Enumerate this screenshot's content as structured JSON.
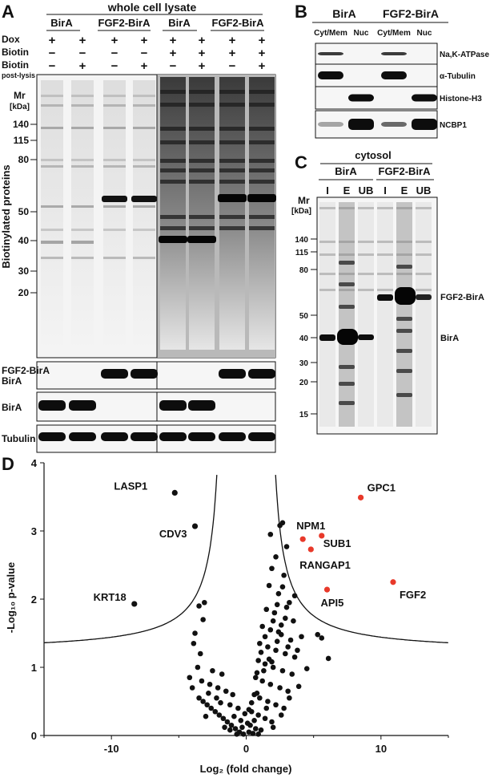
{
  "panelA": {
    "letter": "A",
    "title": "whole cell lysate",
    "groups": [
      "BirA",
      "FGF2-BirA",
      "BirA",
      "FGF2-BirA"
    ],
    "rowLabels": {
      "dox": "Dox",
      "biotin": "Biotin",
      "biotin2": "Biotin",
      "postlysis": "post-lysis"
    },
    "dox": [
      "+",
      "+",
      "+",
      "+",
      "+",
      "+",
      "+",
      "+"
    ],
    "biotin": [
      "−",
      "−",
      "−",
      "−",
      "+",
      "+",
      "+",
      "+"
    ],
    "biotin2": [
      "−",
      "+",
      "−",
      "+",
      "−",
      "+",
      "−",
      "+"
    ],
    "mr": "Mr",
    "kda": "[kDa]",
    "ladder": [
      "140",
      "115",
      "80",
      "50",
      "40",
      "30",
      "20"
    ],
    "yaxis": "Biotinylated proteins",
    "blots": [
      "FGF2-BirA",
      "BirA",
      "Tubulin"
    ]
  },
  "panelB": {
    "letter": "B",
    "groups": [
      "BirA",
      "FGF2-BirA"
    ],
    "lanes": [
      "Cyt/Mem",
      "Nuc",
      "Cyt/Mem",
      "Nuc"
    ],
    "blots": [
      "Na,K-ATPase",
      "α-Tubulin",
      "Histone-H3",
      "NCBP1"
    ]
  },
  "panelC": {
    "letter": "C",
    "title": "cytosol",
    "groups": [
      "BirA",
      "FGF2-BirA"
    ],
    "lanes": [
      "I",
      "E",
      "UB",
      "I",
      "E",
      "UB"
    ],
    "mr": "Mr",
    "kda": "[kDa]",
    "ladder": [
      "140",
      "115",
      "80",
      "50",
      "40",
      "30",
      "20",
      "15"
    ],
    "bands": [
      "FGF2-BirA",
      "BirA"
    ]
  },
  "panelD": {
    "letter": "D",
    "chart_data": {
      "type": "scatter",
      "xlabel": "Log₂ (fold change)",
      "ylabel": "-Log₁₀ p-value",
      "xlim": [
        -15,
        15
      ],
      "ylim": [
        0,
        4
      ],
      "xticks": [
        "-10",
        "0",
        "10"
      ],
      "yticks": [
        "0",
        "1",
        "2",
        "3",
        "4"
      ],
      "highlight_color": "#e8392a",
      "labeled": [
        {
          "name": "LASP1",
          "x": -5.3,
          "y": 3.56,
          "hit": false
        },
        {
          "name": "CDV3",
          "x": -3.8,
          "y": 3.07,
          "hit": false
        },
        {
          "name": "KRT18",
          "x": -8.3,
          "y": 1.93,
          "hit": false
        },
        {
          "name": "GPC1",
          "x": 8.5,
          "y": 3.49,
          "hit": true
        },
        {
          "name": "NPM1",
          "x": 4.2,
          "y": 2.88,
          "hit": true
        },
        {
          "name": "SUB1",
          "x": 5.6,
          "y": 2.93,
          "hit": true
        },
        {
          "name": "RANGAP1",
          "x": 4.8,
          "y": 2.73,
          "hit": true
        },
        {
          "name": "API5",
          "x": 6.0,
          "y": 2.14,
          "hit": true
        },
        {
          "name": "FGF2",
          "x": 10.9,
          "y": 2.25,
          "hit": true
        }
      ],
      "points": [
        [
          2.5,
          3.08
        ],
        [
          2.7,
          3.12
        ],
        [
          1.8,
          2.95
        ],
        [
          3.0,
          2.77
        ],
        [
          2.2,
          2.62
        ],
        [
          1.9,
          2.45
        ],
        [
          2.8,
          2.35
        ],
        [
          1.7,
          2.2
        ],
        [
          2.4,
          2.08
        ],
        [
          3.2,
          1.95
        ],
        [
          1.5,
          1.85
        ],
        [
          2.1,
          1.8
        ],
        [
          2.9,
          1.72
        ],
        [
          1.2,
          1.6
        ],
        [
          1.8,
          1.55
        ],
        [
          2.6,
          1.48
        ],
        [
          3.3,
          1.4
        ],
        [
          1.0,
          1.35
        ],
        [
          1.6,
          1.3
        ],
        [
          2.2,
          1.25
        ],
        [
          2.9,
          1.2
        ],
        [
          3.6,
          1.15
        ],
        [
          0.9,
          1.1
        ],
        [
          1.4,
          1.05
        ],
        [
          2.0,
          1.0
        ],
        [
          2.7,
          0.95
        ],
        [
          3.4,
          0.9
        ],
        [
          0.7,
          0.85
        ],
        [
          1.2,
          0.8
        ],
        [
          1.8,
          0.75
        ],
        [
          2.5,
          0.7
        ],
        [
          3.1,
          0.65
        ],
        [
          0.6,
          0.6
        ],
        [
          1.0,
          0.55
        ],
        [
          1.6,
          0.5
        ],
        [
          2.2,
          0.45
        ],
        [
          2.8,
          0.4
        ],
        [
          0.4,
          0.35
        ],
        [
          0.9,
          0.3
        ],
        [
          1.4,
          0.25
        ],
        [
          1.9,
          0.2
        ],
        [
          0.3,
          0.15
        ],
        [
          0.7,
          0.1
        ],
        [
          1.1,
          0.08
        ],
        [
          0.2,
          0.05
        ],
        [
          0.5,
          0.03
        ],
        [
          -0.2,
          0.02
        ],
        [
          -0.5,
          0.05
        ],
        [
          -0.8,
          0.1
        ],
        [
          -1.1,
          0.15
        ],
        [
          -1.4,
          0.2
        ],
        [
          -1.7,
          0.25
        ],
        [
          -2.0,
          0.3
        ],
        [
          -2.3,
          0.35
        ],
        [
          -2.6,
          0.4
        ],
        [
          -2.9,
          0.45
        ],
        [
          -3.2,
          0.5
        ],
        [
          -3.5,
          0.55
        ],
        [
          -1.0,
          0.6
        ],
        [
          -1.5,
          0.65
        ],
        [
          -2.1,
          0.7
        ],
        [
          -2.7,
          0.75
        ],
        [
          -3.3,
          0.8
        ],
        [
          -3.6,
          1.0
        ],
        [
          -3.4,
          1.2
        ],
        [
          -3.8,
          1.5
        ],
        [
          -3.2,
          1.7
        ],
        [
          -3.5,
          1.9
        ],
        [
          -3.1,
          1.95
        ],
        [
          -3.9,
          1.35
        ],
        [
          -4.2,
          0.85
        ],
        [
          -4.0,
          0.7
        ],
        [
          -2.5,
          0.95
        ],
        [
          -1.8,
          0.9
        ],
        [
          -0.6,
          0.4
        ],
        [
          -0.9,
          0.28
        ],
        [
          -0.3,
          0.12
        ],
        [
          0.1,
          0.18
        ],
        [
          0.4,
          0.48
        ],
        [
          0.8,
          0.62
        ],
        [
          1.3,
          0.95
        ],
        [
          1.7,
          1.12
        ],
        [
          2.3,
          1.38
        ],
        [
          2.6,
          1.62
        ],
        [
          3.0,
          1.88
        ],
        [
          3.5,
          1.68
        ],
        [
          3.8,
          1.25
        ],
        [
          4.1,
          1.45
        ],
        [
          5.3,
          1.48
        ],
        [
          5.6,
          1.43
        ],
        [
          6.1,
          1.13
        ],
        [
          4.5,
          0.98
        ],
        [
          3.9,
          0.72
        ],
        [
          3.2,
          0.55
        ],
        [
          2.6,
          0.3
        ],
        [
          2.0,
          0.12
        ],
        [
          1.5,
          0.4
        ],
        [
          0.6,
          0.22
        ],
        [
          -0.1,
          0.32
        ],
        [
          -1.2,
          0.45
        ],
        [
          2.3,
          1.92
        ],
        [
          2.0,
          1.68
        ],
        [
          1.1,
          1.22
        ],
        [
          0.8,
          0.92
        ],
        [
          3.6,
          2.05
        ],
        [
          2.7,
          2.18
        ],
        [
          1.4,
          1.45
        ],
        [
          2.4,
          1.52
        ],
        [
          3.1,
          1.3
        ],
        [
          1.9,
          1.08
        ],
        [
          0.2,
          0.38
        ],
        [
          -0.4,
          0.22
        ],
        [
          -2.2,
          0.55
        ],
        [
          -1.9,
          0.48
        ],
        [
          -2.8,
          0.62
        ],
        [
          -3.0,
          0.28
        ],
        [
          -1.6,
          0.12
        ],
        [
          -1.2,
          0.08
        ],
        [
          -0.7,
          0.02
        ],
        [
          0.9,
          0.02
        ]
      ]
    }
  }
}
